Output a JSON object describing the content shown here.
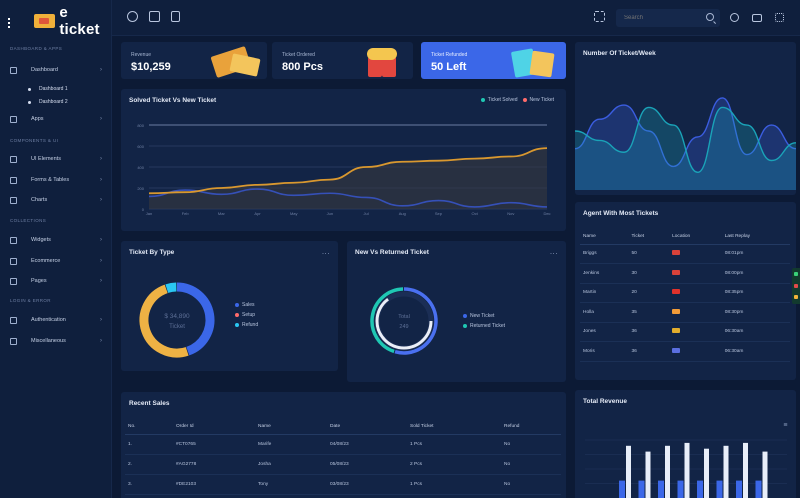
{
  "brand": {
    "name": "e ticket"
  },
  "sidebar": {
    "sections": [
      "DASHBOARD & APPS",
      "COMPONENTS & UI",
      "COLLECTIONS",
      "LOGIN & ERROR"
    ],
    "items": [
      {
        "label": "Dashboard"
      },
      {
        "label": "Dashboard 1"
      },
      {
        "label": "Dashboard 2"
      },
      {
        "label": "Apps"
      },
      {
        "label": "UI Elements"
      },
      {
        "label": "Forms & Tables"
      },
      {
        "label": "Charts"
      },
      {
        "label": "Widgets"
      },
      {
        "label": "Ecommerce"
      },
      {
        "label": "Pages"
      },
      {
        "label": "Authentication"
      },
      {
        "label": "Miscellaneous"
      }
    ]
  },
  "topbar": {
    "search_placeholder": "Search"
  },
  "kpis": [
    {
      "caption": "Revenue",
      "value": "$10,259"
    },
    {
      "caption": "Ticket Ordered",
      "value": "800 Pcs"
    },
    {
      "caption": "Ticket Refunded",
      "value": "50 Left"
    }
  ],
  "colors": {
    "accent": "#3b67e8",
    "gold": "#e9a23b",
    "navy": "#122446",
    "teal": "#1fc7b3",
    "red": "#ff6b6b",
    "sky": "#2ac7f2"
  },
  "solved_chart": {
    "title": "Solved Ticket Vs New Ticket",
    "legend": [
      "Ticket Solved",
      "New Ticket"
    ],
    "x_ticks": [
      "Jan",
      "Feb",
      "Mar",
      "Apr",
      "May",
      "Jun",
      "Jul",
      "Aug",
      "Sep",
      "Oct",
      "Nov",
      "Dec"
    ],
    "y_ticks": [
      "800",
      "600",
      "400",
      "200",
      "0"
    ]
  },
  "chart_data": [
    {
      "type": "area",
      "title": "Solved Ticket Vs New Ticket",
      "categories": [
        "Jan",
        "Feb",
        "Mar",
        "Apr",
        "May",
        "Jun",
        "Jul",
        "Aug",
        "Sep",
        "Oct",
        "Nov",
        "Dec"
      ],
      "ylim": [
        0,
        800
      ],
      "series": [
        {
          "name": "Ticket Solved",
          "values": [
            150,
            160,
            200,
            230,
            250,
            280,
            400,
            450,
            460,
            480,
            500,
            580
          ]
        },
        {
          "name": "New Ticket",
          "values": [
            120,
            180,
            140,
            190,
            130,
            150,
            110,
            30,
            80,
            20,
            60,
            20
          ]
        }
      ]
    },
    {
      "type": "line",
      "title": "Number Of Ticket/Week",
      "series": [
        {
          "values": [
            0.35,
            0.6,
            0.72,
            0.5,
            0.2,
            0.45,
            0.78,
            0.3,
            0.55,
            0.35
          ]
        },
        {
          "values": [
            0.5,
            0.42,
            0.32,
            0.7,
            0.55,
            0.15,
            0.7,
            0.55,
            0.25,
            0.4
          ]
        }
      ]
    },
    {
      "type": "pie",
      "title": "Ticket By Type",
      "center_value": "$ 34,890",
      "center_label": "Ticket",
      "legend": [
        "Sales",
        "Setup",
        "Refund"
      ],
      "values": [
        45,
        50,
        5
      ]
    },
    {
      "type": "pie",
      "title": "New Vs Returned Ticket",
      "center_value": "Total",
      "center_label": "249",
      "legend": [
        "New Ticket",
        "Returned Ticket"
      ],
      "values": [
        55,
        45
      ]
    },
    {
      "type": "bar",
      "title": "Total Revenue",
      "series": [
        {
          "values": [
            0.3,
            0.3,
            0.3,
            0.3,
            0.3,
            0.3,
            0.3,
            0.3
          ]
        },
        {
          "values": [
            0.9,
            0.8,
            0.9,
            0.95,
            0.85,
            0.9,
            0.95,
            0.8
          ]
        }
      ]
    }
  ],
  "weekly_chart": {
    "title": "Number Of Ticket/Week"
  },
  "by_type": {
    "title": "Ticket By Type",
    "more": "...",
    "center_value": "$ 34,890",
    "center_label": "Ticket",
    "legend": [
      "Sales",
      "Setup",
      "Refund"
    ]
  },
  "new_returned": {
    "title": "New Vs Returned Ticket",
    "more": "...",
    "center_value": "Total",
    "center_label": "249",
    "legend": [
      "New Ticket",
      "Returned Ticket"
    ]
  },
  "agents": {
    "title": "Agent With Most Tickets",
    "headers": [
      "Name",
      "Ticket",
      "Location",
      "Last Replay"
    ],
    "rows": [
      {
        "name": "Briggs",
        "ticket": "50",
        "flag": "us",
        "time": "08:01pm"
      },
      {
        "name": "Jenkins",
        "ticket": "30",
        "flag": "us",
        "time": "08:00pm"
      },
      {
        "name": "Martin",
        "ticket": "20",
        "flag": "cn",
        "time": "08:35pm"
      },
      {
        "name": "Holla",
        "ticket": "35",
        "flag": "in",
        "time": "08:30pm"
      },
      {
        "name": "Jones",
        "ticket": "36",
        "flag": "de",
        "time": "06:30am"
      },
      {
        "name": "Moris",
        "ticket": "36",
        "flag": "fr",
        "time": "06:30am"
      }
    ]
  },
  "recent_sales": {
    "title": "Recent Sales",
    "headers": [
      "No.",
      "Order Id",
      "Name",
      "Date",
      "Sold Ticket",
      "Refund"
    ],
    "rows": [
      {
        "no": "1.",
        "order": "#CT0765",
        "name": "Marife",
        "date": "04/08/23",
        "sold": "1 Pcs",
        "refund": "No"
      },
      {
        "no": "2.",
        "order": "#AG2778",
        "name": "Josha",
        "date": "05/08/23",
        "sold": "2 Pcs",
        "refund": "No"
      },
      {
        "no": "3.",
        "order": "#DE2103",
        "name": "Tony",
        "date": "03/08/23",
        "sold": "1 Pcs",
        "refund": "No"
      }
    ]
  },
  "revenue": {
    "title": "Total Revenue",
    "more": "≡"
  }
}
